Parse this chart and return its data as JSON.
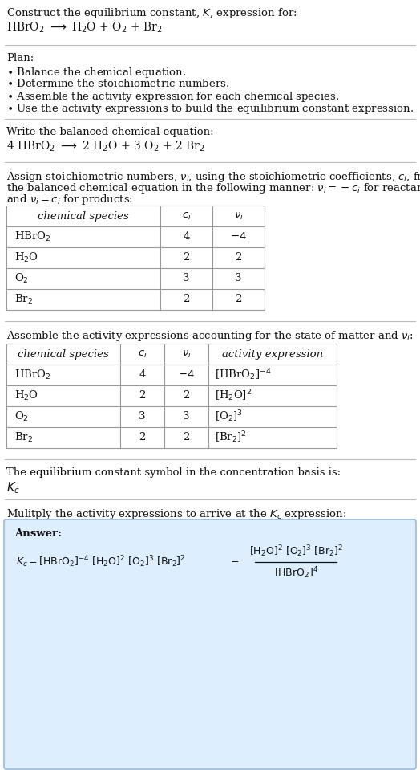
{
  "bg_color": "#ffffff",
  "text_color": "#111111",
  "separator_color": "#bbbbbb",
  "table_border_color": "#999999",
  "answer_box_color": "#ddeeff",
  "answer_box_border": "#99bbdd",
  "fontsize": 9.5,
  "table_font": 9.5,
  "sec1_line1": "Construct the equilibrium constant, $K$, expression for:",
  "sec1_line2_plain": "HBrO",
  "sec1_line2": "HBrO$_2$ $\\longrightarrow$ H$_2$O + O$_2$ + Br$_2$",
  "plan_header": "Plan:",
  "plan_items": [
    "\\bullet  Balance the chemical equation.",
    "\\bullet  Determine the stoichiometric numbers.",
    "\\bullet  Assemble the activity expression for each chemical species.",
    "\\bullet  Use the activity expressions to build the equilibrium constant expression."
  ],
  "sec3_header": "Write the balanced chemical equation:",
  "sec3_eq": "4 HBrO$_2$ $\\longrightarrow$ 2 H$_2$O + 3 O$_2$ + 2 Br$_2$",
  "sec4_text_l1": "Assign stoichiometric numbers, $\\nu_i$, using the stoichiometric coefficients, $c_i$, from",
  "sec4_text_l2": "the balanced chemical equation in the following manner: $\\nu_i = -c_i$ for reactants",
  "sec4_text_l3": "and $\\nu_i = c_i$ for products:",
  "table1_col_headers": [
    "chemical species",
    "$c_i$",
    "$\\nu_i$"
  ],
  "table1_rows": [
    [
      "HBrO$_2$",
      "4",
      "$-4$"
    ],
    [
      "H$_2$O",
      "2",
      "2"
    ],
    [
      "O$_2$",
      "3",
      "3"
    ],
    [
      "Br$_2$",
      "2",
      "2"
    ]
  ],
  "sec5_header": "Assemble the activity expressions accounting for the state of matter and $\\nu_i$:",
  "table2_col_headers": [
    "chemical species",
    "$c_i$",
    "$\\nu_i$",
    "activity expression"
  ],
  "table2_rows": [
    [
      "HBrO$_2$",
      "4",
      "$-4$",
      "[HBrO$_2$]$^{-4}$"
    ],
    [
      "H$_2$O",
      "2",
      "2",
      "[H$_2$O]$^2$"
    ],
    [
      "O$_2$",
      "3",
      "3",
      "[O$_2$]$^3$"
    ],
    [
      "Br$_2$",
      "2",
      "2",
      "[Br$_2$]$^2$"
    ]
  ],
  "sec6_header": "The equilibrium constant symbol in the concentration basis is:",
  "sec6_symbol": "$K_c$",
  "sec7_header": "Mulitply the activity expressions to arrive at the $K_c$ expression:",
  "answer_label": "Answer:",
  "kc_lhs": "$K_c = \\mathrm{[HBrO_2]^{-4}\\,[H_2O]^2\\,[O_2]^3\\,[Br_2]^2}$",
  "kc_eq_sign": "$=$",
  "kc_numer": "$\\mathrm{[H_2O]^2\\,[O_2]^3\\,[Br_2]^2}$",
  "kc_denom": "$\\mathrm{[HBrO_2]^4}$"
}
